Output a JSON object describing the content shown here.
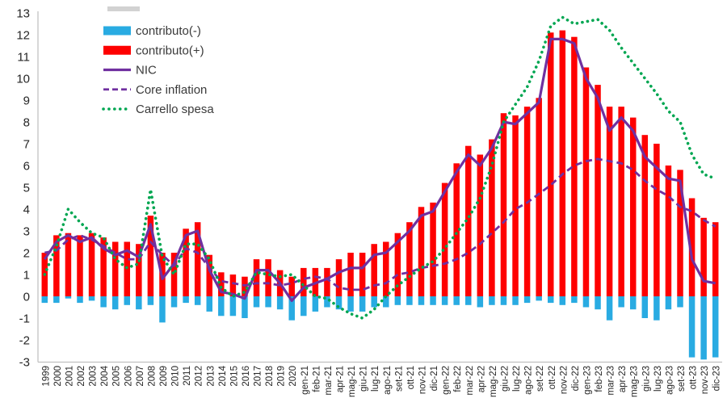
{
  "chart_data": {
    "type": "bar",
    "subtype": "combo-bar-line",
    "title": "",
    "xlabel": "",
    "ylabel": "",
    "ylim": [
      -3,
      13
    ],
    "ytick_step": 1,
    "grid": false,
    "legend_position": "top-left",
    "axis_color": "#BFBFBF",
    "text_color": "#262626",
    "legend_text_color": "#3a3a3a",
    "categories": [
      "1999",
      "2000",
      "2001",
      "2002",
      "2003",
      "2004",
      "2005",
      "2006",
      "2007",
      "2008",
      "2009",
      "2010",
      "2011",
      "2012",
      "2013",
      "2014",
      "2015",
      "2016",
      "2017",
      "2018",
      "2019",
      "2020",
      "gen-21",
      "feb-21",
      "mar-21",
      "apr-21",
      "mag-21",
      "giu-21",
      "lug-21",
      "ago-21",
      "set-21",
      "ott-21",
      "nov-21",
      "dic-21",
      "gen-22",
      "feb-22",
      "mar-22",
      "apr-22",
      "mag-22",
      "giu-22",
      "lug-22",
      "ago-22",
      "set-22",
      "ott-22",
      "nov-22",
      "dic-22",
      "gen-23",
      "feb-23",
      "mar-23",
      "apr-23",
      "mag-23",
      "giu-23",
      "lug-23",
      "ago-23",
      "set-23",
      "ott-23",
      "nov-23",
      "dic-23"
    ],
    "series": [
      {
        "name": "contributo(-)",
        "type": "bar",
        "color": "#29ABE2",
        "values": [
          -0.3,
          -0.3,
          -0.1,
          -0.3,
          -0.2,
          -0.5,
          -0.6,
          -0.4,
          -0.6,
          -0.4,
          -1.2,
          -0.5,
          -0.3,
          -0.4,
          -0.7,
          -0.9,
          -0.9,
          -1.0,
          -0.5,
          -0.5,
          -0.6,
          -1.1,
          -0.9,
          -0.7,
          -0.5,
          -0.6,
          -0.7,
          -0.7,
          -0.5,
          -0.5,
          -0.4,
          -0.4,
          -0.4,
          -0.4,
          -0.4,
          -0.4,
          -0.4,
          -0.5,
          -0.4,
          -0.4,
          -0.4,
          -0.3,
          -0.2,
          -0.3,
          -0.4,
          -0.3,
          -0.5,
          -0.6,
          -1.1,
          -0.5,
          -0.6,
          -1.0,
          -1.1,
          -0.6,
          -0.5,
          -2.8,
          -2.9,
          -2.8
        ]
      },
      {
        "name": "contributo(+)",
        "type": "bar",
        "color": "#FE0000",
        "values": [
          2.0,
          2.8,
          2.9,
          2.8,
          2.9,
          2.7,
          2.5,
          2.5,
          2.4,
          3.7,
          2.0,
          2.0,
          3.1,
          3.4,
          1.9,
          1.1,
          1.0,
          0.9,
          1.7,
          1.7,
          1.2,
          0.9,
          1.3,
          1.3,
          1.3,
          1.7,
          2.0,
          2.0,
          2.4,
          2.5,
          2.9,
          3.4,
          4.1,
          4.3,
          5.2,
          6.1,
          6.9,
          6.5,
          7.2,
          8.4,
          8.3,
          8.7,
          9.1,
          12.1,
          12.2,
          11.9,
          10.5,
          9.7,
          8.7,
          8.7,
          8.2,
          7.4,
          7.0,
          6.0,
          5.8,
          4.5,
          3.6,
          3.4
        ]
      },
      {
        "name": "NIC",
        "type": "line",
        "style": "solid",
        "color": "#7030A0",
        "values": [
          1.7,
          2.5,
          2.8,
          2.5,
          2.7,
          2.2,
          1.9,
          2.1,
          1.8,
          3.3,
          0.8,
          1.5,
          2.8,
          3.0,
          1.2,
          0.2,
          0.1,
          -0.1,
          1.2,
          1.2,
          0.6,
          -0.2,
          0.4,
          0.6,
          0.8,
          1.1,
          1.3,
          1.3,
          1.9,
          2.0,
          2.5,
          3.0,
          3.7,
          3.9,
          4.8,
          5.7,
          6.5,
          6.0,
          6.8,
          8.0,
          7.9,
          8.4,
          8.9,
          11.8,
          11.8,
          11.6,
          10.0,
          9.1,
          7.6,
          8.2,
          7.6,
          6.4,
          5.9,
          5.4,
          5.3,
          1.7,
          0.7,
          0.6
        ]
      },
      {
        "name": "Core inflation",
        "type": "line",
        "style": "dashed",
        "color": "#7030A0",
        "values": [
          2.0,
          2.1,
          2.6,
          2.8,
          2.6,
          2.3,
          2.0,
          1.7,
          1.7,
          2.5,
          1.9,
          1.4,
          2.2,
          2.0,
          1.3,
          0.7,
          0.6,
          0.5,
          0.6,
          0.6,
          0.5,
          0.6,
          0.8,
          0.9,
          0.8,
          0.4,
          0.3,
          0.3,
          0.5,
          0.6,
          1.0,
          1.1,
          1.3,
          1.4,
          1.5,
          1.7,
          2.0,
          2.4,
          2.9,
          3.4,
          4.0,
          4.3,
          4.7,
          5.1,
          5.6,
          6.0,
          6.2,
          6.3,
          6.2,
          6.1,
          5.8,
          5.3,
          4.9,
          4.6,
          4.1,
          3.9,
          3.5,
          3.2
        ]
      },
      {
        "name": "Carrello spesa",
        "type": "line",
        "style": "dotted",
        "color": "#00A651",
        "values": [
          1.0,
          2.3,
          4.0,
          3.4,
          2.9,
          2.7,
          1.7,
          1.3,
          1.5,
          4.9,
          1.8,
          1.0,
          2.4,
          2.4,
          1.7,
          0.4,
          0.0,
          0.2,
          1.1,
          1.0,
          0.9,
          1.0,
          0.5,
          0.0,
          -0.1,
          -0.5,
          -0.8,
          -1.0,
          -0.6,
          0.0,
          0.5,
          0.9,
          1.3,
          1.6,
          2.2,
          2.9,
          3.6,
          4.5,
          6.0,
          8.0,
          8.8,
          9.6,
          10.8,
          12.4,
          12.8,
          12.5,
          12.6,
          12.7,
          12.2,
          11.4,
          10.7,
          10.0,
          9.3,
          8.5,
          8.0,
          6.5,
          5.6,
          5.4
        ]
      }
    ]
  }
}
